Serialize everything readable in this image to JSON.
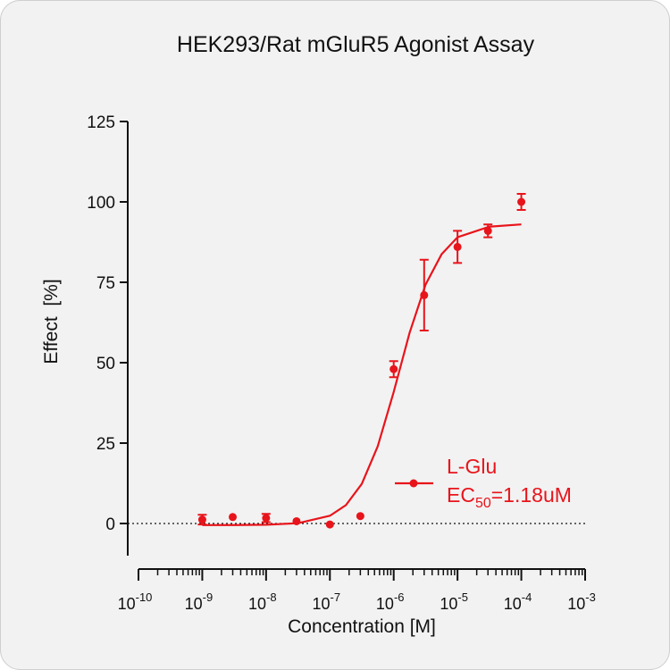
{
  "chart_data": {
    "type": "dose-response",
    "title": "HEK293/Rat mGluR5 Agonist Assay",
    "x_label": "Concentration [M]",
    "y_label": "Effect  [%]",
    "x_log": true,
    "log_minor_ticks": true,
    "zero_line": true,
    "xlim": [
      1e-10,
      0.001
    ],
    "xticks": [
      {
        "value": 1e-10,
        "label": "10",
        "exponent": "-10"
      },
      {
        "value": 1e-09,
        "label": "10",
        "exponent": "-9"
      },
      {
        "value": 1e-08,
        "label": "10",
        "exponent": "-8"
      },
      {
        "value": 1e-07,
        "label": "10",
        "exponent": "-7"
      },
      {
        "value": 1e-06,
        "label": "10",
        "exponent": "-6"
      },
      {
        "value": 1e-05,
        "label": "10",
        "exponent": "-5"
      },
      {
        "value": 0.0001,
        "label": "10",
        "exponent": "-4"
      },
      {
        "value": 0.001,
        "label": "10",
        "exponent": "-3"
      }
    ],
    "ylim": [
      -10,
      125
    ],
    "yticks": [
      0,
      25,
      50,
      75,
      100,
      125
    ],
    "series": [
      {
        "name": "L-Glu",
        "color": "#e8141b",
        "x": [
          1e-09,
          3e-09,
          1e-08,
          3e-08,
          1e-07,
          3e-07,
          1e-06,
          3e-06,
          1e-05,
          3e-05,
          0.0001
        ],
        "values": [
          1.2,
          2,
          1.7,
          0.7,
          -0.3,
          2.3,
          48,
          71,
          86,
          91,
          100
        ],
        "errors": [
          1.5,
          0,
          1.3,
          0,
          0,
          0,
          2.5,
          11,
          5,
          2,
          2.5
        ],
        "fit_x": [
          1e-09,
          3.16e-09,
          1e-08,
          3.16e-08,
          1e-07,
          1.78e-07,
          3.16e-07,
          5.62e-07,
          1e-06,
          1.78e-06,
          3.16e-06,
          5.62e-06,
          1e-05,
          3.16e-05,
          0.0001
        ],
        "fit_values": [
          -0.5,
          -0.48,
          -0.38,
          0.09,
          2.4,
          5.7,
          12.3,
          24.0,
          40.9,
          59.4,
          74.3,
          83.7,
          89.0,
          92.3,
          93.0
        ]
      }
    ],
    "annotation": {
      "text": "EC",
      "subscript": "50",
      "suffix": "=1.18uM"
    }
  }
}
